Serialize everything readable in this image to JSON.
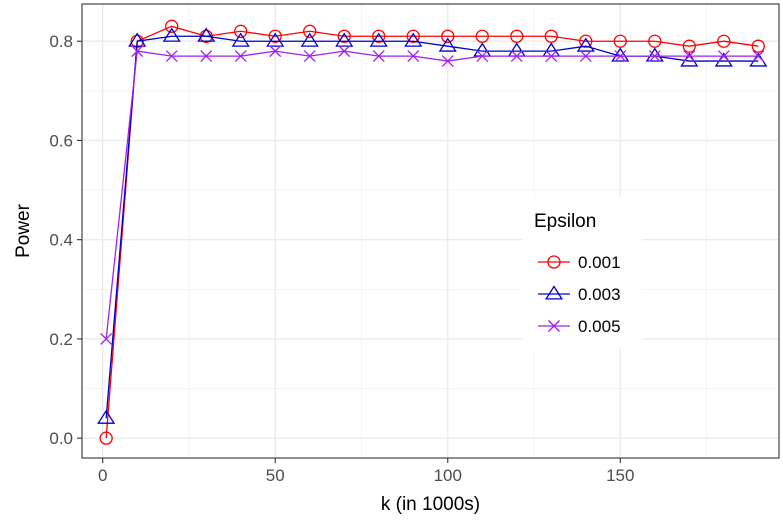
{
  "chart_data": {
    "type": "line",
    "title": "",
    "xlabel": "k (in 1000s)",
    "ylabel": "Power",
    "xlim": [
      -6,
      196
    ],
    "ylim": [
      -0.04,
      0.875
    ],
    "x_ticks": [
      0,
      50,
      100,
      150
    ],
    "x_tick_labels": [
      "0",
      "50",
      "100",
      "150"
    ],
    "x_minor_ticks": [
      25,
      75,
      125,
      175
    ],
    "y_ticks": [
      0.0,
      0.2,
      0.4,
      0.6,
      0.8
    ],
    "y_tick_labels": [
      "0.0",
      "0.2",
      "0.4",
      "0.6",
      "0.8"
    ],
    "y_minor_ticks": [
      0.1,
      0.3,
      0.5,
      0.7
    ],
    "grid": true,
    "legend": {
      "title": "Epsilon",
      "placement": "right-middle"
    },
    "x": [
      1,
      10,
      20,
      30,
      40,
      50,
      60,
      70,
      80,
      90,
      100,
      110,
      120,
      130,
      140,
      150,
      160,
      170,
      180,
      190
    ],
    "series": [
      {
        "name": "0.001",
        "color": "#ff0000",
        "marker": "circle",
        "values": [
          0.0,
          0.8,
          0.83,
          0.81,
          0.82,
          0.81,
          0.82,
          0.81,
          0.81,
          0.81,
          0.81,
          0.81,
          0.81,
          0.81,
          0.8,
          0.8,
          0.8,
          0.79,
          0.8,
          0.79
        ]
      },
      {
        "name": "0.003",
        "color": "#0000cd",
        "marker": "triangle",
        "values": [
          0.04,
          0.8,
          0.81,
          0.81,
          0.8,
          0.8,
          0.8,
          0.8,
          0.8,
          0.8,
          0.79,
          0.78,
          0.78,
          0.78,
          0.79,
          0.77,
          0.77,
          0.76,
          0.76,
          0.76
        ]
      },
      {
        "name": "0.005",
        "color": "#a020f0",
        "marker": "x",
        "values": [
          0.2,
          0.78,
          0.77,
          0.77,
          0.77,
          0.78,
          0.77,
          0.78,
          0.77,
          0.77,
          0.76,
          0.77,
          0.77,
          0.77,
          0.77,
          0.77,
          0.77,
          0.77,
          0.77,
          0.77
        ]
      }
    ]
  }
}
